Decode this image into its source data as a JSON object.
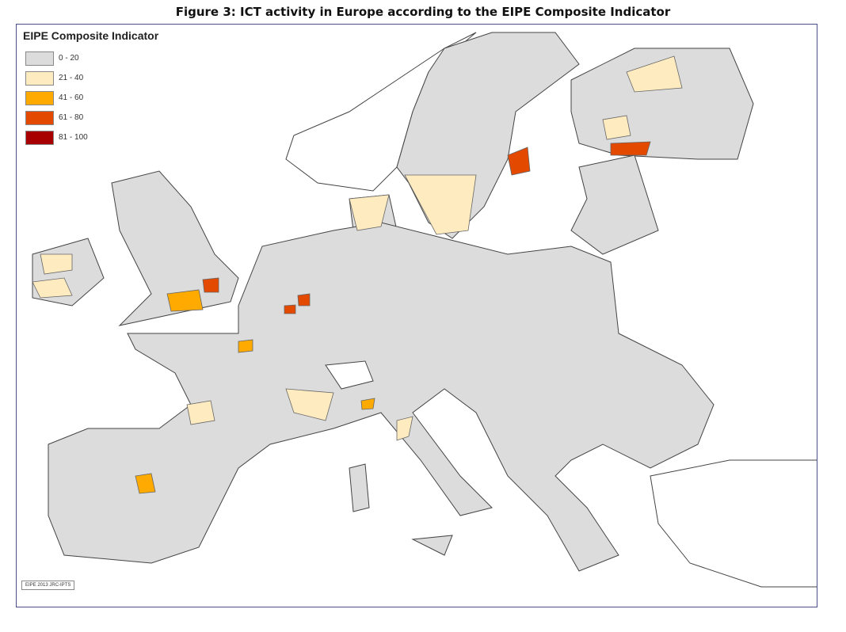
{
  "title": "Figure 3: ICT activity in Europe according to the EIPE Composite Indicator",
  "legend": {
    "title": "EIPE Composite Indicator",
    "items": [
      {
        "label": "0 - 20",
        "color": "#dcdcdc"
      },
      {
        "label": "21 - 40",
        "color": "#ffebc0"
      },
      {
        "label": "41 - 60",
        "color": "#ffaa00"
      },
      {
        "label": "61 - 80",
        "color": "#e34a00"
      },
      {
        "label": "81 - 100",
        "color": "#a80000"
      }
    ]
  },
  "credit": "EIPE 2013 JRC-IPTS",
  "colors": {
    "no_data": "#ffffff",
    "border": "#333333",
    "frame": "#4a4f8a"
  }
}
